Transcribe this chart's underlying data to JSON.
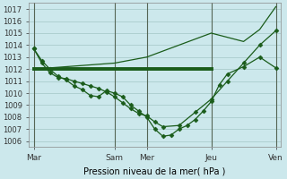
{
  "background_color": "#cce8ec",
  "grid_color": "#aacccc",
  "line_color": "#1a5c1a",
  "xtick_labels": [
    "Mar",
    "Sam",
    "Mer",
    "Jeu",
    "Ven"
  ],
  "xtick_positions": [
    0,
    5,
    7,
    11,
    15
  ],
  "ylim": [
    1005.5,
    1017.5
  ],
  "xlim": [
    -0.3,
    15.3
  ],
  "xlabel": "Pression niveau de la mer( hPa )",
  "curve_wavy_x": [
    0,
    0.5,
    1,
    1.5,
    2,
    2.5,
    3,
    3.5,
    4,
    4.5,
    5,
    5.5,
    6,
    6.5,
    7,
    7.5,
    8,
    8.5,
    9,
    9.5,
    10,
    10.5,
    11,
    11.5,
    12,
    13,
    14,
    15
  ],
  "curve_wavy_y": [
    1013.7,
    1012.7,
    1012.0,
    1011.4,
    1011.1,
    1010.6,
    1010.3,
    1009.8,
    1009.7,
    1010.2,
    1010.0,
    1009.7,
    1009.0,
    1008.5,
    1008.0,
    1007.0,
    1006.4,
    1006.5,
    1007.0,
    1007.3,
    1007.8,
    1008.5,
    1009.3,
    1010.7,
    1011.6,
    1012.2,
    1013.0,
    1012.1
  ],
  "curve_smooth_x": [
    0,
    0.5,
    1,
    1.5,
    2,
    2.5,
    3,
    3.5,
    4,
    4.5,
    5,
    5.5,
    6,
    6.5,
    7,
    7.5,
    8,
    9,
    10,
    11,
    12,
    13,
    14,
    15
  ],
  "curve_smooth_y": [
    1013.7,
    1012.5,
    1011.7,
    1011.3,
    1011.2,
    1011.0,
    1010.8,
    1010.6,
    1010.4,
    1010.1,
    1009.7,
    1009.2,
    1008.7,
    1008.3,
    1008.1,
    1007.6,
    1007.2,
    1007.3,
    1008.4,
    1009.5,
    1011.0,
    1012.5,
    1014.0,
    1015.2
  ],
  "curve_trend_x": [
    0,
    5,
    7,
    11,
    13,
    14,
    15
  ],
  "curve_trend_y": [
    1012.0,
    1012.5,
    1013.0,
    1015.0,
    1014.3,
    1015.3,
    1017.2
  ],
  "thick_line_x": [
    0,
    7.5,
    11
  ],
  "thick_line_y": [
    1012.0,
    1012.0,
    1012.0
  ]
}
